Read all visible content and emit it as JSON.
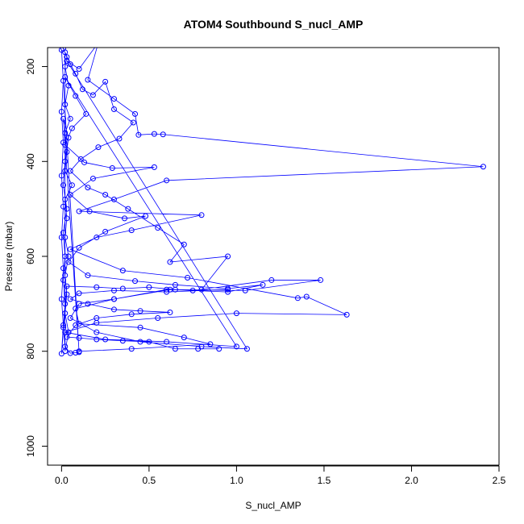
{
  "chart_data": {
    "type": "line",
    "title": "ATOM4 Southbound S_nucl_AMP",
    "xlabel": "S_nucl_AMP",
    "ylabel": "Pressure (mbar)",
    "xlim": [
      -0.08,
      2.5
    ],
    "ylim": [
      1040,
      160
    ],
    "y_reversed": true,
    "x_ticks": [
      "0.0",
      "0.5",
      "1.0",
      "1.5",
      "2.0",
      "2.5"
    ],
    "y_ticks": [
      "200",
      "400",
      "600",
      "800",
      "1000"
    ],
    "grid": false,
    "legend": "none",
    "colors": {
      "series": "#0000ff",
      "axis": "#000000",
      "background": "#ffffff"
    },
    "marker": "open-circle",
    "series": [
      {
        "values": [
          [
            0.01,
            162
          ],
          [
            0.03,
            180
          ],
          [
            0.02,
            200
          ],
          [
            0.04,
            240
          ],
          [
            0.02,
            280
          ],
          [
            0.05,
            310
          ],
          [
            0.02,
            340
          ],
          [
            0.03,
            380
          ],
          [
            0.02,
            420
          ],
          [
            0.06,
            450
          ],
          [
            0.02,
            480
          ],
          [
            0.03,
            520
          ],
          [
            0.02,
            560
          ],
          [
            0.04,
            600
          ],
          [
            0.02,
            640
          ],
          [
            0.03,
            680
          ],
          [
            0.02,
            720
          ],
          [
            0.04,
            760
          ],
          [
            0.02,
            800
          ],
          [
            0.02,
            170
          ],
          [
            0.05,
            195
          ],
          [
            0.08,
            215
          ],
          [
            0.12,
            248
          ],
          [
            0.18,
            260
          ],
          [
            0.25,
            232
          ],
          [
            0.3,
            290
          ],
          [
            0.41,
            318
          ],
          [
            0.33,
            352
          ],
          [
            0.21,
            370
          ],
          [
            0.11,
            395
          ],
          [
            0.05,
            420
          ],
          [
            0.15,
            455
          ],
          [
            0.25,
            470
          ],
          [
            0.38,
            500
          ],
          [
            0.55,
            540
          ],
          [
            0.7,
            575
          ],
          [
            0.62,
            612
          ],
          [
            0.95,
            600
          ],
          [
            0.8,
            670
          ],
          [
            1.2,
            650
          ],
          [
            1.48,
            650
          ],
          [
            1.05,
            672
          ],
          [
            0.6,
            670
          ],
          [
            0.3,
            690
          ],
          [
            0.1,
            700
          ],
          [
            0.05,
            730
          ],
          [
            0.2,
            760
          ],
          [
            0.45,
            780
          ],
          [
            0.8,
            790
          ],
          [
            1.06,
            795
          ],
          [
            0.03,
            188
          ],
          [
            0.1,
            205
          ],
          [
            0.21,
            150
          ],
          [
            0.15,
            228
          ],
          [
            0.3,
            268
          ],
          [
            0.42,
            300
          ],
          [
            0.44,
            344
          ],
          [
            0.53,
            342
          ],
          [
            0.58,
            343
          ],
          [
            2.41,
            411
          ],
          [
            0.6,
            440
          ],
          [
            0.3,
            480
          ],
          [
            0.1,
            505
          ],
          [
            0.8,
            513
          ],
          [
            0.4,
            545
          ],
          [
            0.2,
            560
          ],
          [
            0.05,
            585
          ],
          [
            0.35,
            630
          ],
          [
            0.72,
            645
          ],
          [
            1.35,
            688
          ],
          [
            1.4,
            685
          ],
          [
            1.63,
            723
          ],
          [
            1.0,
            720
          ],
          [
            0.55,
            730
          ],
          [
            0.2,
            740
          ],
          [
            0.02,
            760
          ],
          [
            0.25,
            775
          ],
          [
            0.6,
            780
          ],
          [
            1.0,
            790
          ],
          [
            0.02,
            222
          ],
          [
            0.08,
            262
          ],
          [
            0.14,
            300
          ],
          [
            0.06,
            330
          ],
          [
            0.02,
            365
          ],
          [
            0.13,
            402
          ],
          [
            0.29,
            414
          ],
          [
            0.53,
            412
          ],
          [
            0.18,
            436
          ],
          [
            0.05,
            470
          ],
          [
            0.16,
            505
          ],
          [
            0.36,
            520
          ],
          [
            0.48,
            515
          ],
          [
            0.25,
            548
          ],
          [
            0.1,
            582
          ],
          [
            0.04,
            612
          ],
          [
            0.15,
            640
          ],
          [
            0.42,
            652
          ],
          [
            0.65,
            660
          ],
          [
            0.95,
            668
          ],
          [
            1.15,
            660
          ],
          [
            0.95,
            675
          ],
          [
            0.62,
            670
          ],
          [
            0.3,
            690
          ],
          [
            0.08,
            710
          ],
          [
            0.1,
            742
          ],
          [
            0.45,
            750
          ],
          [
            0.7,
            771
          ],
          [
            0.85,
            785
          ],
          [
            0.4,
            795
          ],
          [
            0.1,
            800
          ],
          [
            0.01,
            310
          ],
          [
            0.04,
            350
          ],
          [
            0.02,
            400
          ],
          [
            0.01,
            450
          ],
          [
            0.03,
            500
          ],
          [
            0.01,
            550
          ],
          [
            0.02,
            600
          ],
          [
            0.01,
            650
          ],
          [
            0.02,
            700
          ],
          [
            0.01,
            750
          ],
          [
            0.02,
            790
          ],
          [
            0.05,
            804
          ],
          [
            0.08,
            803
          ],
          [
            0.1,
            802
          ],
          [
            0.0,
            165
          ],
          [
            0.01,
            230
          ],
          [
            0.0,
            295
          ],
          [
            0.01,
            360
          ],
          [
            0.0,
            430
          ],
          [
            0.01,
            495
          ],
          [
            0.0,
            560
          ],
          [
            0.01,
            625
          ],
          [
            0.0,
            690
          ],
          [
            0.01,
            745
          ],
          [
            0.0,
            805
          ],
          [
            0.03,
            663
          ],
          [
            0.2,
            665
          ],
          [
            0.35,
            668
          ],
          [
            0.5,
            665
          ],
          [
            0.65,
            670
          ],
          [
            0.75,
            672
          ],
          [
            0.95,
            670
          ],
          [
            0.6,
            675
          ],
          [
            0.3,
            672
          ],
          [
            0.1,
            678
          ],
          [
            0.05,
            690
          ],
          [
            0.15,
            700
          ],
          [
            0.3,
            712
          ],
          [
            0.45,
            715
          ],
          [
            0.62,
            718
          ],
          [
            0.4,
            722
          ],
          [
            0.2,
            730
          ],
          [
            0.08,
            745
          ],
          [
            0.03,
            770
          ],
          [
            0.1,
            772
          ],
          [
            0.2,
            775
          ],
          [
            0.35,
            778
          ],
          [
            0.5,
            780
          ],
          [
            0.65,
            795
          ],
          [
            0.78,
            795
          ],
          [
            0.9,
            795
          ]
        ]
      }
    ]
  }
}
